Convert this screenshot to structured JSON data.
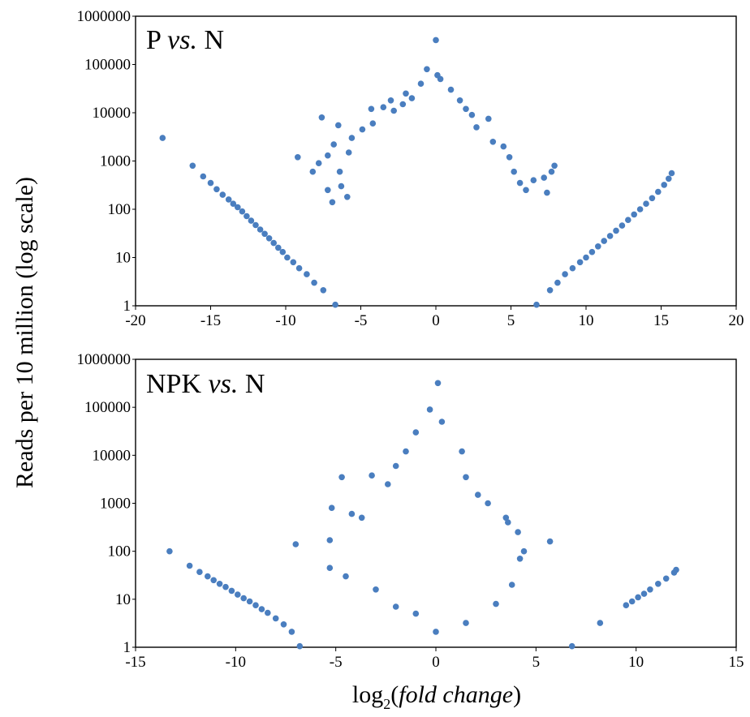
{
  "figure": {
    "ylabel": "Reads per 10 million (log scale)",
    "xlabel_prefix": "log",
    "xlabel_sub": "2",
    "xlabel_paren_open": "(",
    "xlabel_italic": "fold change",
    "xlabel_paren_close": ")"
  },
  "chart_data": [
    {
      "type": "scatter",
      "title_main": "P ",
      "title_italic": "vs.",
      "title_tail": " N",
      "xlim": [
        -20,
        20
      ],
      "ylim": [
        1,
        1000000
      ],
      "yscale": "log",
      "xticks": [
        "-20",
        "-15",
        "-10",
        "-5",
        "0",
        "5",
        "10",
        "15",
        "20"
      ],
      "yticks": [
        "1",
        "10",
        "100",
        "1000",
        "10000",
        "100000",
        "1000000"
      ],
      "grid": false,
      "color": "#4a7ebf",
      "series": [
        {
          "points": [
            [
              -18.2,
              3000
            ],
            [
              -16.2,
              800
            ],
            [
              -15.5,
              480
            ],
            [
              -15.0,
              350
            ],
            [
              -14.6,
              260
            ],
            [
              -14.2,
              200
            ],
            [
              -13.8,
              160
            ],
            [
              -13.5,
              130
            ],
            [
              -13.2,
              110
            ],
            [
              -12.9,
              90
            ],
            [
              -12.6,
              72
            ],
            [
              -12.3,
              58
            ],
            [
              -12.0,
              47
            ],
            [
              -11.7,
              38
            ],
            [
              -11.4,
              31
            ],
            [
              -11.1,
              25
            ],
            [
              -10.8,
              20
            ],
            [
              -10.5,
              16
            ],
            [
              -10.2,
              13
            ],
            [
              -9.9,
              10
            ],
            [
              -9.5,
              8
            ],
            [
              -9.1,
              6
            ],
            [
              -8.6,
              4.5
            ],
            [
              -8.1,
              3
            ],
            [
              -7.5,
              2.1
            ],
            [
              -6.7,
              1.05
            ],
            [
              6.7,
              1.05
            ],
            [
              7.6,
              2.1
            ],
            [
              8.1,
              3
            ],
            [
              8.6,
              4.5
            ],
            [
              9.1,
              6
            ],
            [
              9.6,
              8
            ],
            [
              10.0,
              10
            ],
            [
              10.4,
              13
            ],
            [
              10.8,
              17
            ],
            [
              11.2,
              22
            ],
            [
              11.6,
              28
            ],
            [
              12.0,
              36
            ],
            [
              12.4,
              46
            ],
            [
              12.8,
              60
            ],
            [
              13.2,
              78
            ],
            [
              13.6,
              100
            ],
            [
              14.0,
              130
            ],
            [
              14.4,
              170
            ],
            [
              14.8,
              230
            ],
            [
              15.2,
              320
            ],
            [
              15.5,
              430
            ],
            [
              15.7,
              560
            ],
            [
              -7.6,
              8000
            ],
            [
              -6.5,
              5500
            ],
            [
              -9.2,
              1200
            ],
            [
              -8.2,
              600
            ],
            [
              -7.2,
              1300
            ],
            [
              -7.8,
              900
            ],
            [
              -6.8,
              2200
            ],
            [
              -5.8,
              1500
            ],
            [
              -5.9,
              180
            ],
            [
              -6.3,
              300
            ],
            [
              -7.2,
              250
            ],
            [
              -6.9,
              140
            ],
            [
              -4.3,
              12000
            ],
            [
              -3.5,
              13000
            ],
            [
              -2.8,
              11000
            ],
            [
              -2.2,
              15000
            ],
            [
              -1.6,
              20000
            ],
            [
              -1.0,
              40000
            ],
            [
              -0.6,
              80000
            ],
            [
              0.0,
              320000
            ],
            [
              0.1,
              60000
            ],
            [
              0.3,
              50000
            ],
            [
              1.0,
              30000
            ],
            [
              1.6,
              18000
            ],
            [
              2.0,
              12000
            ],
            [
              2.7,
              5000
            ],
            [
              3.5,
              7500
            ],
            [
              3.8,
              2500
            ],
            [
              4.5,
              2000
            ],
            [
              5.2,
              600
            ],
            [
              5.6,
              350
            ],
            [
              6.0,
              250
            ],
            [
              6.5,
              400
            ],
            [
              7.4,
              220
            ],
            [
              7.7,
              600
            ],
            [
              7.9,
              800
            ],
            [
              7.2,
              450
            ],
            [
              4.9,
              1200
            ],
            [
              2.4,
              9000
            ],
            [
              -6.4,
              600
            ],
            [
              -5.6,
              3000
            ],
            [
              -4.9,
              4500
            ],
            [
              -4.2,
              6000
            ],
            [
              -3.0,
              18000
            ],
            [
              -2.0,
              25000
            ]
          ]
        }
      ]
    },
    {
      "type": "scatter",
      "title_main": "NPK ",
      "title_italic": "vs.",
      "title_tail": " N",
      "xlim": [
        -15,
        15
      ],
      "ylim": [
        1,
        1000000
      ],
      "yscale": "log",
      "xticks": [
        "-15",
        "-10",
        "-5",
        "0",
        "5",
        "10",
        "15"
      ],
      "yticks": [
        "1",
        "10",
        "100",
        "1000",
        "10000",
        "100000",
        "1000000"
      ],
      "grid": false,
      "color": "#4a7ebf",
      "series": [
        {
          "points": [
            [
              -13.3,
              100
            ],
            [
              -12.3,
              50
            ],
            [
              -11.8,
              37
            ],
            [
              -11.4,
              30
            ],
            [
              -11.1,
              25
            ],
            [
              -10.8,
              21
            ],
            [
              -10.5,
              18
            ],
            [
              -10.2,
              15
            ],
            [
              -9.9,
              12.5
            ],
            [
              -9.6,
              10.5
            ],
            [
              -9.3,
              9
            ],
            [
              -9.0,
              7.5
            ],
            [
              -8.7,
              6.2
            ],
            [
              -8.4,
              5.2
            ],
            [
              -8.0,
              4
            ],
            [
              -7.6,
              3
            ],
            [
              -7.2,
              2.1
            ],
            [
              -6.8,
              1.05
            ],
            [
              6.8,
              1.05
            ],
            [
              8.2,
              3.2
            ],
            [
              9.5,
              7.5
            ],
            [
              9.8,
              9
            ],
            [
              10.1,
              11
            ],
            [
              10.4,
              13
            ],
            [
              10.7,
              16
            ],
            [
              11.1,
              21
            ],
            [
              11.5,
              27
            ],
            [
              11.9,
              36
            ],
            [
              12.0,
              41
            ],
            [
              -7.0,
              140
            ],
            [
              -5.3,
              170
            ],
            [
              -5.2,
              800
            ],
            [
              -4.7,
              3500
            ],
            [
              -3.2,
              3800
            ],
            [
              -4.2,
              600
            ],
            [
              -3.7,
              500
            ],
            [
              -2.4,
              2500
            ],
            [
              -2.0,
              6000
            ],
            [
              -1.5,
              12000
            ],
            [
              -1.0,
              30000
            ],
            [
              -0.3,
              90000
            ],
            [
              0.1,
              320000
            ],
            [
              0.3,
              50000
            ],
            [
              1.3,
              12000
            ],
            [
              1.5,
              3500
            ],
            [
              2.1,
              1500
            ],
            [
              2.6,
              1000
            ],
            [
              3.5,
              500
            ],
            [
              3.6,
              400
            ],
            [
              5.7,
              160
            ],
            [
              4.1,
              250
            ],
            [
              4.4,
              100
            ],
            [
              4.2,
              70
            ],
            [
              -5.3,
              45
            ],
            [
              -4.5,
              30
            ],
            [
              -3.0,
              16
            ],
            [
              -1.0,
              5
            ],
            [
              0.0,
              2.1
            ],
            [
              1.5,
              3.2
            ],
            [
              3.0,
              8
            ],
            [
              3.8,
              20
            ],
            [
              -2.0,
              7
            ]
          ]
        }
      ]
    }
  ]
}
